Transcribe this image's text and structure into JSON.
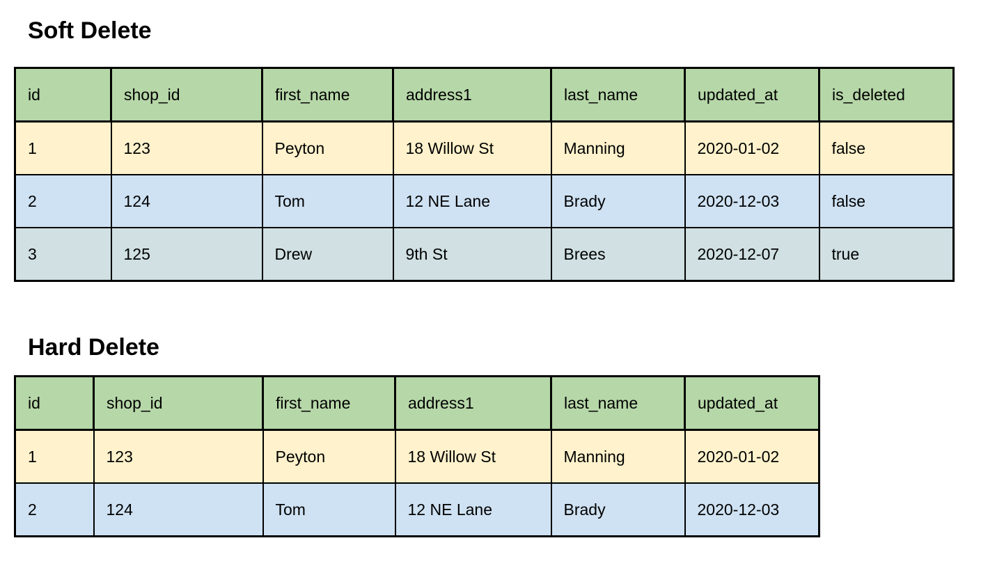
{
  "colors": {
    "header_green": "#b6d7a8",
    "row_yellow": "#fff2cc",
    "row_blue": "#cfe2f3",
    "row_gray_cyan": "#d0e0e3",
    "border": "#000000",
    "text": "#000000",
    "background": "#ffffff"
  },
  "sections": [
    {
      "title": "Soft Delete",
      "columns": [
        "id",
        "shop_id",
        "first_name",
        "address1",
        "last_name",
        "updated_at",
        "is_deleted"
      ],
      "rows": [
        {
          "color": "row_yellow",
          "cells": [
            "1",
            "123",
            "Peyton",
            "18 Willow St",
            "Manning",
            "2020-01-02",
            "false"
          ]
        },
        {
          "color": "row_blue",
          "cells": [
            "2",
            "124",
            "Tom",
            "12 NE Lane",
            "Brady",
            "2020-12-03",
            "false"
          ]
        },
        {
          "color": "row_gray_cyan",
          "cells": [
            "3",
            "125",
            "Drew",
            "9th St",
            "Brees",
            "2020-12-07",
            "true"
          ]
        }
      ]
    },
    {
      "title": "Hard Delete",
      "columns": [
        "id",
        "shop_id",
        "first_name",
        "address1",
        "last_name",
        "updated_at"
      ],
      "rows": [
        {
          "color": "row_yellow",
          "cells": [
            "1",
            "123",
            "Peyton",
            "18 Willow St",
            "Manning",
            "2020-01-02"
          ]
        },
        {
          "color": "row_blue",
          "cells": [
            "2",
            "124",
            "Tom",
            "12 NE Lane",
            "Brady",
            "2020-12-03"
          ]
        }
      ]
    }
  ]
}
